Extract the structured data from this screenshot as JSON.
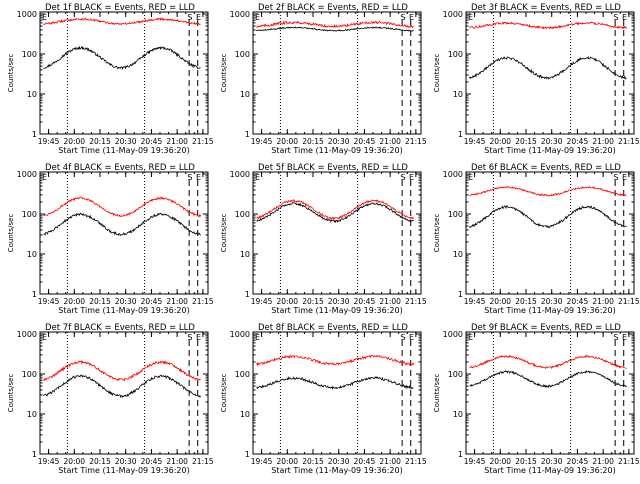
{
  "chart_data": [
    {
      "type": "line",
      "title": "Det 1f BLACK = Events, RED = LLD",
      "xlabel": "Start Time (11-May-09 19:36:20)",
      "ylabel": "Counts/sec",
      "xticks": [
        "19:45",
        "20:00",
        "20:15",
        "20:30",
        "20:45",
        "21:00",
        "21:15"
      ],
      "yticks": [
        "1",
        "10",
        "100",
        "1000"
      ],
      "markers": [
        "E",
        "S",
        "E"
      ],
      "series": [
        {
          "color": "black",
          "base": 80,
          "amp": 0.25,
          "noise": 0.03
        },
        {
          "color": "red",
          "base": 650,
          "amp": 0.06,
          "noise": 0.025
        }
      ]
    },
    {
      "type": "line",
      "title": "Det 2f BLACK = Events, RED = LLD",
      "xlabel": "Start Time (11-May-09 19:36:20)",
      "ylabel": "Counts/sec",
      "xticks": [
        "19:45",
        "20:00",
        "20:15",
        "20:30",
        "20:45",
        "21:00",
        "21:15"
      ],
      "yticks": [
        "1",
        "10",
        "100",
        "1000"
      ],
      "markers": [
        "E",
        "S",
        "E"
      ],
      "series": [
        {
          "color": "black",
          "base": 420,
          "amp": 0.04,
          "noise": 0.015
        },
        {
          "color": "red",
          "base": 550,
          "amp": 0.05,
          "noise": 0.03
        }
      ]
    },
    {
      "type": "line",
      "title": "Det 3f BLACK = Events, RED = LLD",
      "xlabel": "Start Time (11-May-09 19:36:20)",
      "ylabel": "Counts/sec",
      "xticks": [
        "19:45",
        "20:00",
        "20:15",
        "20:30",
        "20:45",
        "21:00",
        "21:15"
      ],
      "yticks": [
        "1",
        "10",
        "100",
        "1000"
      ],
      "markers": [
        "E",
        "S",
        "E"
      ],
      "series": [
        {
          "color": "black",
          "base": 45,
          "amp": 0.25,
          "noise": 0.03
        },
        {
          "color": "red",
          "base": 520,
          "amp": 0.06,
          "noise": 0.025
        }
      ]
    },
    {
      "type": "line",
      "title": "Det 4f BLACK = Events, RED = LLD",
      "xlabel": "Start Time (11-May-09 19:36:20)",
      "ylabel": "Counts/sec",
      "xticks": [
        "19:45",
        "20:00",
        "20:15",
        "20:30",
        "20:45",
        "21:00",
        "21:15"
      ],
      "yticks": [
        "1",
        "10",
        "100",
        "1000"
      ],
      "markers": [
        "E",
        "S",
        "E"
      ],
      "series": [
        {
          "color": "black",
          "base": 55,
          "amp": 0.25,
          "noise": 0.03
        },
        {
          "color": "red",
          "base": 150,
          "amp": 0.22,
          "noise": 0.025
        }
      ]
    },
    {
      "type": "line",
      "title": "Det 5f BLACK = Events, RED = LLD",
      "xlabel": "Start Time (11-May-09 19:36:20)",
      "ylabel": "Counts/sec",
      "xticks": [
        "19:45",
        "20:00",
        "20:15",
        "20:30",
        "20:45",
        "21:00",
        "21:15"
      ],
      "yticks": [
        "1",
        "10",
        "100",
        "1000"
      ],
      "markers": [
        "E",
        "S",
        "E"
      ],
      "series": [
        {
          "color": "black",
          "base": 110,
          "amp": 0.22,
          "noise": 0.025
        },
        {
          "color": "red",
          "base": 130,
          "amp": 0.22,
          "noise": 0.025
        }
      ]
    },
    {
      "type": "line",
      "title": "Det 6f BLACK = Events, RED = LLD",
      "xlabel": "Start Time (11-May-09 19:36:20)",
      "ylabel": "Counts/sec",
      "xticks": [
        "19:45",
        "20:00",
        "20:15",
        "20:30",
        "20:45",
        "21:00",
        "21:15"
      ],
      "yticks": [
        "1",
        "10",
        "100",
        "1000"
      ],
      "markers": [
        "E",
        "S",
        "E"
      ],
      "series": [
        {
          "color": "black",
          "base": 85,
          "amp": 0.25,
          "noise": 0.03
        },
        {
          "color": "red",
          "base": 370,
          "amp": 0.1,
          "noise": 0.02
        }
      ]
    },
    {
      "type": "line",
      "title": "Det 7f BLACK = Events, RED = LLD",
      "xlabel": "Start Time (11-May-09 19:36:20)",
      "ylabel": "Counts/sec",
      "xticks": [
        "19:45",
        "20:00",
        "20:15",
        "20:30",
        "20:45",
        "21:00",
        "21:15"
      ],
      "yticks": [
        "1",
        "10",
        "100",
        "1000"
      ],
      "markers": [
        "E",
        "S",
        "E"
      ],
      "series": [
        {
          "color": "black",
          "base": 50,
          "amp": 0.25,
          "noise": 0.03
        },
        {
          "color": "red",
          "base": 120,
          "amp": 0.22,
          "noise": 0.03
        }
      ]
    },
    {
      "type": "line",
      "title": "Det 8f BLACK = Events, RED = LLD",
      "xlabel": "Start Time (11-May-09 19:36:20)",
      "ylabel": "Counts/sec",
      "xticks": [
        "19:45",
        "20:00",
        "20:15",
        "20:30",
        "20:45",
        "21:00",
        "21:15"
      ],
      "yticks": [
        "1",
        "10",
        "100",
        "1000"
      ],
      "markers": [
        "E",
        "S",
        "E"
      ],
      "series": [
        {
          "color": "black",
          "base": 60,
          "amp": 0.12,
          "noise": 0.03
        },
        {
          "color": "red",
          "base": 220,
          "amp": 0.1,
          "noise": 0.03
        }
      ]
    },
    {
      "type": "line",
      "title": "Det 9f BLACK = Events, RED = LLD",
      "xlabel": "Start Time (11-May-09 19:36:20)",
      "ylabel": "Counts/sec",
      "xticks": [
        "19:45",
        "20:00",
        "20:15",
        "20:30",
        "20:45",
        "21:00",
        "21:15"
      ],
      "yticks": [
        "1",
        "10",
        "100",
        "1000"
      ],
      "markers": [
        "E",
        "S",
        "E"
      ],
      "series": [
        {
          "color": "black",
          "base": 75,
          "amp": 0.18,
          "noise": 0.025
        },
        {
          "color": "red",
          "base": 200,
          "amp": 0.14,
          "noise": 0.025
        }
      ]
    }
  ]
}
